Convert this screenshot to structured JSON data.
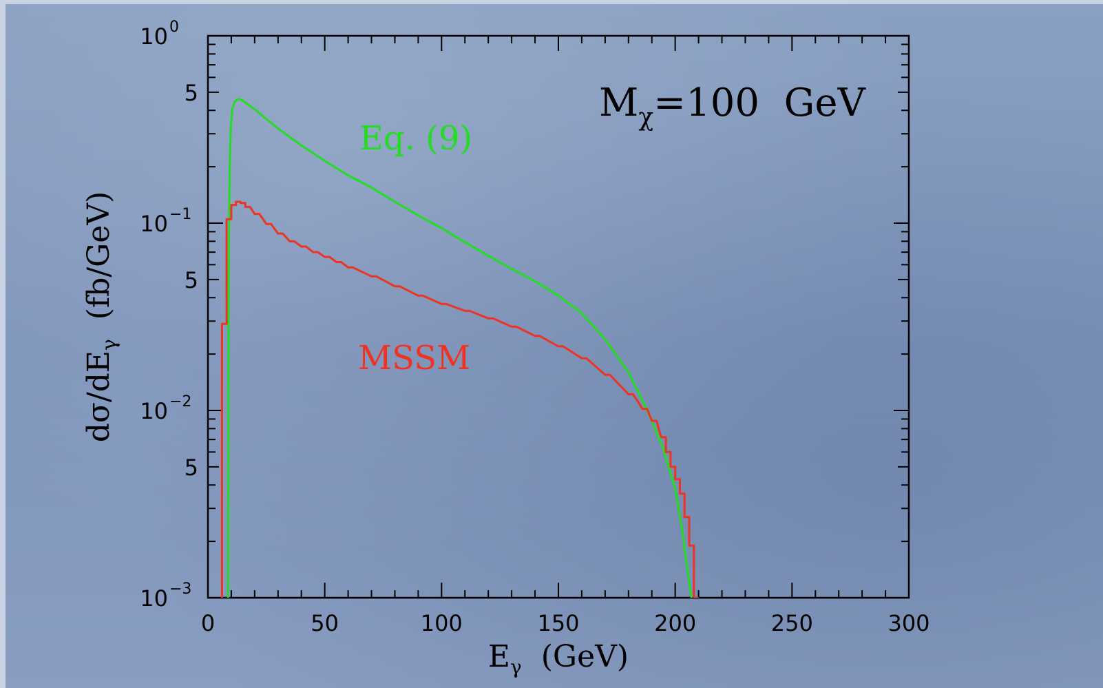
{
  "chart_data": {
    "type": "line",
    "annotation": "M_χ=100  GeV",
    "xlabel": "E_γ  (GeV)",
    "ylabel": "dσ/dE_γ  (fb/GeV)",
    "xlim": [
      0,
      300
    ],
    "ylim": [
      0.001,
      1
    ],
    "yscale": "log",
    "x_ticks": [
      0,
      50,
      100,
      150,
      200,
      250,
      300
    ],
    "y_ticks": [
      {
        "value": 1,
        "base": "10",
        "exp": "0"
      },
      {
        "value": 0.5,
        "label": "5"
      },
      {
        "value": 0.1,
        "base": "10",
        "exp": "−1"
      },
      {
        "value": 0.05,
        "label": "5"
      },
      {
        "value": 0.01,
        "base": "10",
        "exp": "−2"
      },
      {
        "value": 0.005,
        "label": "5"
      },
      {
        "value": 0.001,
        "base": "10",
        "exp": "−3"
      }
    ],
    "grid": false,
    "series": [
      {
        "name": "Eq. (9)",
        "color": "#22dd22",
        "style": "smooth",
        "points": [
          [
            8.6,
            0.001
          ],
          [
            8.9,
            0.05
          ],
          [
            9.3,
            0.2
          ],
          [
            9.8,
            0.33
          ],
          [
            10.5,
            0.41
          ],
          [
            11.5,
            0.445
          ],
          [
            13,
            0.46
          ],
          [
            15,
            0.45
          ],
          [
            20,
            0.405
          ],
          [
            25,
            0.36
          ],
          [
            30,
            0.32
          ],
          [
            40,
            0.26
          ],
          [
            50,
            0.215
          ],
          [
            60,
            0.18
          ],
          [
            70,
            0.155
          ],
          [
            80,
            0.13
          ],
          [
            90,
            0.11
          ],
          [
            100,
            0.094
          ],
          [
            110,
            0.079
          ],
          [
            120,
            0.067
          ],
          [
            130,
            0.057
          ],
          [
            140,
            0.049
          ],
          [
            150,
            0.041
          ],
          [
            160,
            0.033
          ],
          [
            170,
            0.024
          ],
          [
            180,
            0.016
          ],
          [
            185,
            0.012
          ],
          [
            190,
            0.0088
          ],
          [
            195,
            0.0062
          ],
          [
            200,
            0.0038
          ],
          [
            203,
            0.0023
          ],
          [
            205,
            0.0015
          ],
          [
            206.5,
            0.0011
          ],
          [
            207,
            0.001
          ]
        ]
      },
      {
        "name": "MSSM",
        "color": "#ee3322",
        "style": "step",
        "bin_width": 2,
        "bins": [
          [
            6,
            0.029
          ],
          [
            8,
            0.105
          ],
          [
            10,
            0.125
          ],
          [
            12,
            0.13
          ],
          [
            14,
            0.128
          ],
          [
            16,
            0.122
          ],
          [
            20,
            0.112
          ],
          [
            25,
            0.099
          ],
          [
            30,
            0.088
          ],
          [
            35,
            0.08
          ],
          [
            40,
            0.075
          ],
          [
            45,
            0.07
          ],
          [
            50,
            0.066
          ],
          [
            55,
            0.062
          ],
          [
            60,
            0.058
          ],
          [
            70,
            0.052
          ],
          [
            80,
            0.046
          ],
          [
            90,
            0.041
          ],
          [
            100,
            0.037
          ],
          [
            110,
            0.034
          ],
          [
            120,
            0.031
          ],
          [
            130,
            0.028
          ],
          [
            140,
            0.025
          ],
          [
            150,
            0.022
          ],
          [
            160,
            0.019
          ],
          [
            170,
            0.0155
          ],
          [
            180,
            0.0122
          ],
          [
            186,
            0.0102
          ],
          [
            190,
            0.0088
          ],
          [
            194,
            0.0072
          ],
          [
            196,
            0.006
          ],
          [
            198,
            0.005
          ],
          [
            200,
            0.0043
          ],
          [
            202,
            0.0036
          ],
          [
            204,
            0.0027
          ],
          [
            206,
            0.0019
          ],
          [
            208,
            0.001
          ]
        ]
      }
    ],
    "annotations": [
      {
        "text": "Eq. (9)",
        "color": "#22dd22"
      },
      {
        "text": "MSSM",
        "color": "#ee3322"
      }
    ]
  }
}
